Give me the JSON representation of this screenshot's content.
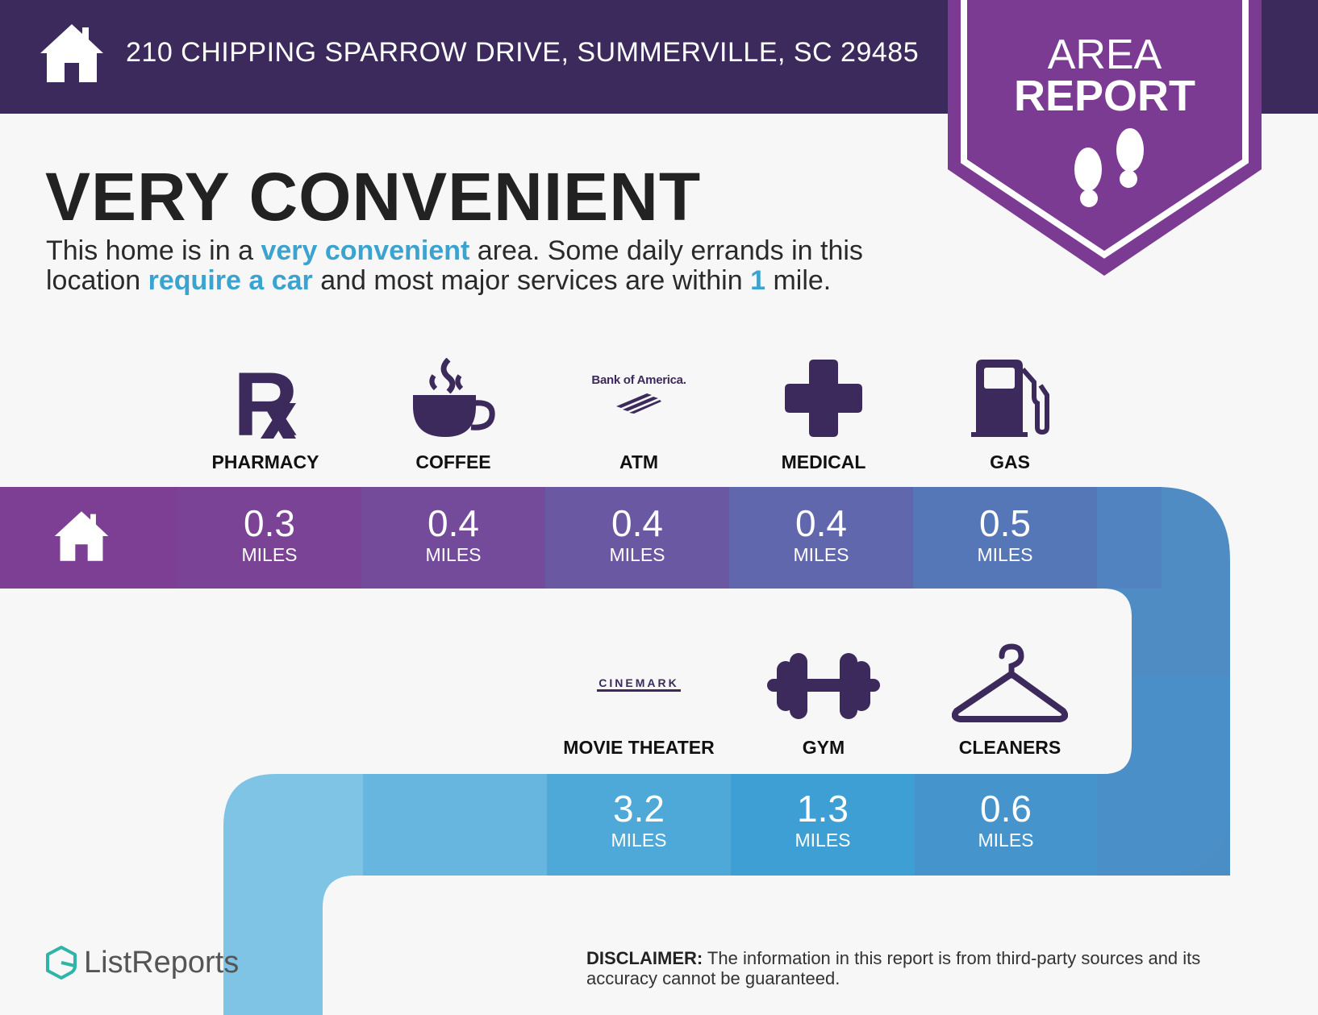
{
  "header": {
    "address": "210 CHIPPING SPARROW DRIVE, SUMMERVILLE, SC 29485",
    "badge_line1": "AREA",
    "badge_line2": "REPORT"
  },
  "summary": {
    "title": "VERY CONVENIENT",
    "desc_part1": "This home is in a ",
    "desc_hl1": "very convenient",
    "desc_part2": " area. Some daily errands in this location ",
    "desc_hl2": "require a car",
    "desc_part3": " and most major services are within ",
    "desc_hl3": "1",
    "desc_part4": " mile."
  },
  "colors": {
    "header_bg": "#3c2a5c",
    "badge": "#7b3b93",
    "icon": "#3c2a5c",
    "highlight": "#3aa3cf"
  },
  "places_row1": [
    {
      "label": "PHARMACY",
      "icon": "rx-icon",
      "distance": "0.3",
      "unit": "MILES"
    },
    {
      "label": "COFFEE",
      "icon": "coffee-cup-icon",
      "distance": "0.4",
      "unit": "MILES"
    },
    {
      "label": "ATM",
      "icon": "bank-of-america-logo",
      "logo_text": "Bank of America.",
      "distance": "0.4",
      "unit": "MILES"
    },
    {
      "label": "MEDICAL",
      "icon": "medical-cross-icon",
      "distance": "0.4",
      "unit": "MILES"
    },
    {
      "label": "GAS",
      "icon": "gas-pump-icon",
      "distance": "0.5",
      "unit": "MILES"
    }
  ],
  "places_row2": [
    {
      "label": "MOVIE THEATER",
      "icon": "cinemark-logo",
      "logo_text": "CINEMARK",
      "distance": "3.2",
      "unit": "MILES"
    },
    {
      "label": "GYM",
      "icon": "dumbbell-icon",
      "distance": "1.3",
      "unit": "MILES"
    },
    {
      "label": "CLEANERS",
      "icon": "hanger-icon",
      "distance": "0.6",
      "unit": "MILES"
    }
  ],
  "footer": {
    "brand": "ListReports",
    "disclaimer_label": "DISCLAIMER:",
    "disclaimer_text": " The information in this report is from third-party sources and its accuracy cannot be guaranteed."
  }
}
